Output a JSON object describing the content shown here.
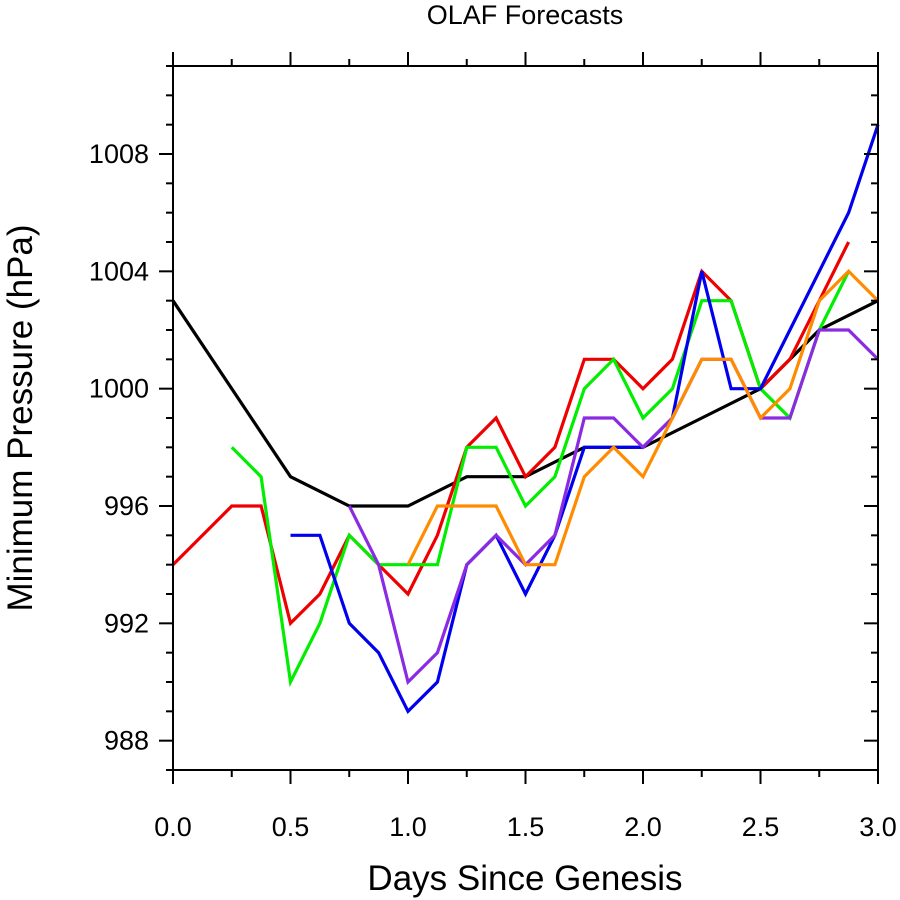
{
  "chart_data": {
    "type": "line",
    "title": "OLAF Forecasts",
    "xlabel": "Days Since Genesis",
    "ylabel": "Minimum Pressure (hPa)",
    "xlim": [
      0,
      3
    ],
    "ylim": [
      987,
      1011
    ],
    "x_ticks": [
      0.0,
      0.5,
      1.0,
      1.5,
      2.0,
      2.5,
      3.0
    ],
    "x_tick_labels": [
      "0.0",
      "0.5",
      "1.0",
      "1.5",
      "2.0",
      "2.5",
      "3.0"
    ],
    "y_ticks": [
      988,
      992,
      996,
      1000,
      1004,
      1008
    ],
    "y_tick_labels": [
      "988",
      "992",
      "996",
      "1000",
      "1004",
      "1008"
    ],
    "grid": false,
    "series": [
      {
        "color": "#000000",
        "x": [
          0,
          0.5,
          0.75,
          1.0,
          1.25,
          1.5,
          1.75,
          2.0,
          2.25,
          2.5,
          2.75,
          3.0
        ],
        "y": [
          1003,
          997,
          996,
          996,
          997,
          997,
          998,
          998,
          999,
          1000,
          1002,
          1003
        ]
      },
      {
        "color": "#ee0000",
        "x": [
          0,
          0.25,
          0.375,
          0.5,
          0.625,
          0.75,
          0.875,
          1.0,
          1.125,
          1.25,
          1.375,
          1.5,
          1.625,
          1.75,
          1.875,
          2.0,
          2.125,
          2.25,
          2.375,
          2.5,
          2.625,
          2.75,
          2.875
        ],
        "y": [
          994,
          996,
          996,
          992,
          993,
          995,
          994,
          993,
          995,
          998,
          999,
          997,
          998,
          1001,
          1001,
          1000,
          1001,
          1004,
          1003,
          1000,
          1001,
          1003,
          1005
        ]
      },
      {
        "color": "#00ee00",
        "x": [
          0.25,
          0.375,
          0.5,
          0.625,
          0.75,
          0.875,
          1.0,
          1.125,
          1.25,
          1.375,
          1.5,
          1.625,
          1.75,
          1.875,
          2.0,
          2.125,
          2.25,
          2.375,
          2.5,
          2.625,
          2.75,
          2.875
        ],
        "y": [
          998,
          997,
          990,
          992,
          995,
          994,
          994,
          994,
          998,
          998,
          996,
          997,
          1000,
          1001,
          999,
          1000,
          1003,
          1003,
          1000,
          999,
          1002,
          1004
        ]
      },
      {
        "color": "#0000ee",
        "x": [
          0.5,
          0.625,
          0.75,
          0.875,
          1.0,
          1.125,
          1.25,
          1.375,
          1.5,
          1.625,
          1.75,
          1.875,
          2.0,
          2.125,
          2.25,
          2.375,
          2.5,
          2.625,
          2.75,
          2.875,
          3.0
        ],
        "y": [
          995,
          995,
          992,
          991,
          989,
          990,
          994,
          995,
          993,
          995,
          998,
          998,
          998,
          999,
          1004,
          1000,
          1000,
          1002,
          1004,
          1006,
          1009
        ]
      },
      {
        "color": "#8a2be2",
        "x": [
          0.75,
          0.875,
          1.0,
          1.125,
          1.25,
          1.375,
          1.5,
          1.625,
          1.75,
          1.875,
          2.0,
          2.125,
          2.25,
          2.375,
          2.5,
          2.625,
          2.75,
          2.875,
          3.0
        ],
        "y": [
          996,
          994,
          990,
          991,
          994,
          995,
          994,
          995,
          999,
          999,
          998,
          999,
          1001,
          1001,
          999,
          999,
          1002,
          1002,
          1001
        ]
      },
      {
        "color": "#ff8c00",
        "x": [
          1.0,
          1.125,
          1.25,
          1.375,
          1.5,
          1.625,
          1.75,
          1.875,
          2.0,
          2.125,
          2.25,
          2.375,
          2.5,
          2.625,
          2.75,
          2.875,
          3.0
        ],
        "y": [
          994,
          996,
          996,
          996,
          994,
          994,
          997,
          998,
          997,
          999,
          1001,
          1001,
          999,
          1000,
          1003,
          1004,
          1003
        ]
      }
    ]
  }
}
